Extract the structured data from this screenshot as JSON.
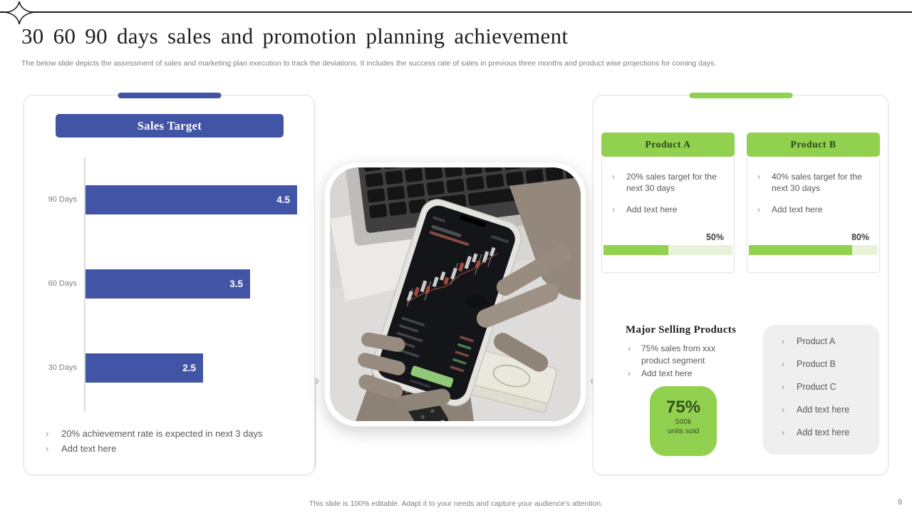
{
  "slide": {
    "title": "30 60 90 days sales and promotion planning achievement",
    "subtitle": "The below slide depicts the assessment of sales and marketing plan execution to track the deviations. It includes the success rate of sales in previous three months and product wise projections for coming days.",
    "footer": "This slide is 100% editable.  Adapt it to your needs and capture your audience's attention.",
    "page_number": "9"
  },
  "ui": {
    "bullet_char": "›",
    "accent_blue": "#4254a6",
    "accent_green": "#92d050",
    "progress_track_green": "#e7f3d9",
    "body_text_gray": "#595959"
  },
  "chart_data": {
    "type": "bar",
    "orientation": "horizontal",
    "title": "Sales Target",
    "categories": [
      "90 Days",
      "60 Days",
      "30 Days"
    ],
    "values": [
      4.5,
      3.5,
      2.5
    ],
    "data_labels": [
      "4.5",
      "3.5",
      "2.5"
    ],
    "xlim": [
      0,
      5
    ],
    "bar_color": "#4254a6",
    "grid": false,
    "legend": false
  },
  "left_panel": {
    "header": "Sales Target",
    "bullets": [
      "20% achievement rate is expected in next 3 days",
      "Add text here"
    ]
  },
  "right_panel": {
    "products": [
      {
        "name": "Product A",
        "bullets": [
          "20% sales target for the next 30 days",
          "Add text here"
        ],
        "percent": 50,
        "percent_label": "50%"
      },
      {
        "name": "Product B",
        "bullets": [
          "40% sales target for the next 30 days",
          "Add text here"
        ],
        "percent": 80,
        "percent_label": "80%"
      }
    ],
    "major": {
      "heading": "Major Selling Products",
      "bullets": [
        "75% sales from xxx product segment",
        "Add text here"
      ],
      "badge": {
        "percent": "75%",
        "line1": "500k",
        "line2": "units sold"
      },
      "list": [
        "Product A",
        "Product B",
        "Product C",
        "Add text here",
        "Add text here"
      ]
    }
  }
}
